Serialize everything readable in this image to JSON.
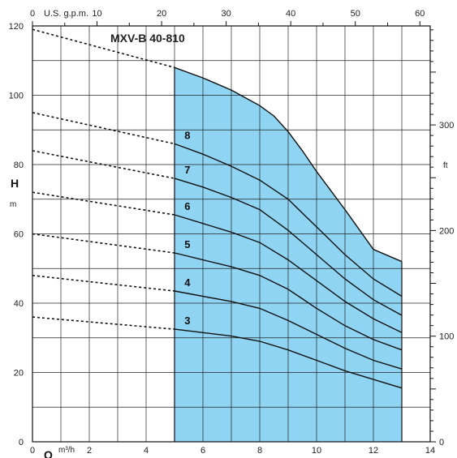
{
  "chart_data": {
    "type": "line",
    "title": "MXV-B 40-810",
    "x_axis_bottom": {
      "label": "Q",
      "unit": "m³/h",
      "range": [
        0,
        14
      ],
      "ticks": [
        0,
        2,
        4,
        6,
        8,
        10,
        12,
        14
      ]
    },
    "x_axis_top": {
      "label": "U.S. g.p.m.",
      "range": [
        0,
        61.6
      ],
      "ticks": [
        0,
        10,
        20,
        30,
        40,
        50,
        60
      ]
    },
    "y_axis_left": {
      "label": "H",
      "unit": "m",
      "range": [
        0,
        120
      ],
      "ticks": [
        0,
        20,
        40,
        60,
        80,
        100,
        120
      ]
    },
    "y_axis_right": {
      "label": "ft",
      "range": [
        0,
        393.7
      ],
      "ticks": [
        0,
        100,
        200,
        300
      ]
    },
    "grid": true,
    "operating_range": {
      "x": [
        5,
        13
      ],
      "color": "#8fd4f2"
    },
    "envelope": {
      "x": [
        5,
        6,
        7,
        8,
        8.5,
        9,
        9.5,
        10,
        11,
        12,
        13
      ],
      "y": [
        108,
        105,
        101.5,
        97,
        94,
        89.5,
        84,
        78,
        67,
        55.5,
        52
      ]
    },
    "series": [
      {
        "name": "8",
        "x_dashed": [
          0,
          5
        ],
        "y_dashed": [
          95,
          86
        ],
        "x": [
          5,
          6,
          7,
          8,
          9,
          10,
          11,
          12,
          13
        ],
        "y": [
          86,
          83,
          79.5,
          75.5,
          70,
          62,
          54,
          47,
          42
        ]
      },
      {
        "name": "7",
        "x_dashed": [
          0,
          5
        ],
        "y_dashed": [
          84,
          76
        ],
        "x": [
          5,
          6,
          7,
          8,
          9,
          10,
          11,
          12,
          13
        ],
        "y": [
          76,
          73.5,
          70.5,
          67,
          61,
          54,
          47,
          41,
          36.5
        ]
      },
      {
        "name": "6",
        "x_dashed": [
          0,
          5
        ],
        "y_dashed": [
          72,
          65.5
        ],
        "x": [
          5,
          6,
          7,
          8,
          9,
          10,
          11,
          12,
          13
        ],
        "y": [
          65.5,
          63,
          60.5,
          57.5,
          52.5,
          46.5,
          40.5,
          35.5,
          31.5
        ]
      },
      {
        "name": "5",
        "x_dashed": [
          0,
          5
        ],
        "y_dashed": [
          60,
          54.5
        ],
        "x": [
          5,
          6,
          7,
          8,
          9,
          10,
          11,
          12,
          13
        ],
        "y": [
          54.5,
          52.5,
          50.5,
          48,
          44,
          38.5,
          33.5,
          29.5,
          26.5
        ]
      },
      {
        "name": "4",
        "x_dashed": [
          0,
          5
        ],
        "y_dashed": [
          48,
          43.5
        ],
        "x": [
          5,
          6,
          7,
          8,
          9,
          10,
          11,
          12,
          13
        ],
        "y": [
          43.5,
          42,
          40.5,
          38.5,
          35,
          31,
          27,
          23.5,
          21
        ]
      },
      {
        "name": "3",
        "x_dashed": [
          0,
          5
        ],
        "y_dashed": [
          36,
          32.5
        ],
        "x": [
          5,
          6,
          7,
          8,
          9,
          10,
          11,
          12,
          13
        ],
        "y": [
          32.5,
          31.5,
          30.5,
          29,
          26.5,
          23.5,
          20.5,
          18,
          15.5
        ]
      }
    ]
  }
}
